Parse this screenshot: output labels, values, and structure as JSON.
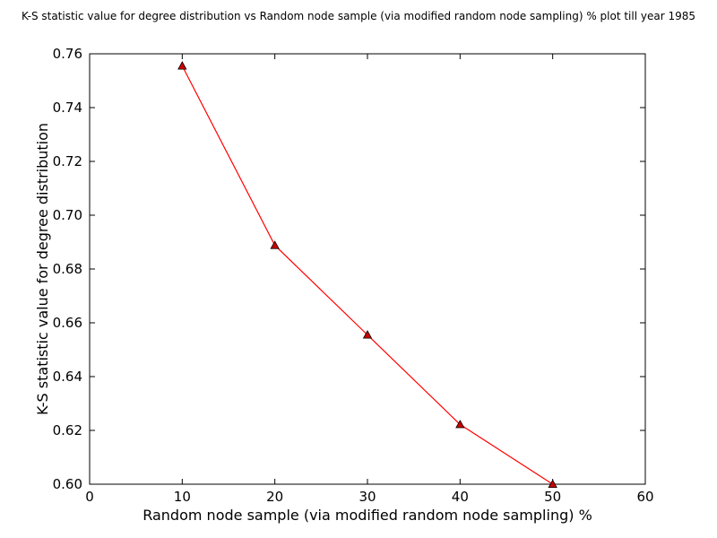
{
  "chart_data": {
    "type": "line",
    "title": "K-S statistic value for degree distribution vs Random node sample (via modified random node sampling) % plot till year 1985",
    "xlabel": "Random node sample (via modified random node sampling) %",
    "ylabel": "K-S statistic value for degree distribution",
    "xlim": [
      0,
      60
    ],
    "ylim": [
      0.6,
      0.76
    ],
    "xticks": [
      "0",
      "10",
      "20",
      "30",
      "40",
      "50",
      "60"
    ],
    "yticks": [
      "0.60",
      "0.62",
      "0.64",
      "0.66",
      "0.68",
      "0.70",
      "0.72",
      "0.74",
      "0.76"
    ],
    "grid": false,
    "series": [
      {
        "x": [
          10,
          20,
          30,
          40,
          50
        ],
        "y": [
          0.7555,
          0.6888,
          0.6555,
          0.6222,
          0.6
        ],
        "color": "#ff0000",
        "marker": "triangle",
        "marker_color": "#cc0000"
      }
    ]
  }
}
